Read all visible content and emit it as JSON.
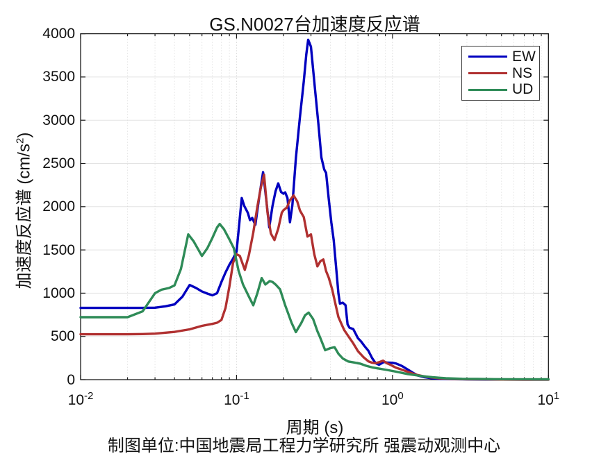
{
  "chart_data": {
    "type": "line",
    "title": "GS.N0027台加速度反应谱",
    "xlabel": "周期 (s)",
    "ylabel": "加速度反应谱 (cm/s2)",
    "ylabel_parts": {
      "pre": "加速度反应谱 (cm/s",
      "sup": "2",
      "post": ")"
    },
    "caption": "制图单位:中国地震局工程力学研究所 强震动观测中心",
    "x_scale": "log",
    "xlim": [
      0.01,
      10
    ],
    "ylim": [
      0,
      4000
    ],
    "grid": true,
    "legend_position": "top-right",
    "x_ticks": [
      {
        "value": 0.01,
        "base": "10",
        "exp": "-2"
      },
      {
        "value": 0.1,
        "base": "10",
        "exp": "-1"
      },
      {
        "value": 1,
        "base": "10",
        "exp": "0"
      },
      {
        "value": 10,
        "base": "10",
        "exp": "1"
      }
    ],
    "y_ticks": [
      0,
      500,
      1000,
      1500,
      2000,
      2500,
      3000,
      3500,
      4000
    ],
    "series": [
      {
        "name": "EW",
        "color": "#0000bf",
        "points": [
          [
            0.01,
            830
          ],
          [
            0.02,
            830
          ],
          [
            0.025,
            830
          ],
          [
            0.03,
            832
          ],
          [
            0.035,
            848
          ],
          [
            0.04,
            870
          ],
          [
            0.045,
            960
          ],
          [
            0.05,
            1095
          ],
          [
            0.055,
            1060
          ],
          [
            0.06,
            1020
          ],
          [
            0.065,
            995
          ],
          [
            0.07,
            975
          ],
          [
            0.075,
            1000
          ],
          [
            0.08,
            1130
          ],
          [
            0.085,
            1240
          ],
          [
            0.09,
            1330
          ],
          [
            0.095,
            1400
          ],
          [
            0.1,
            1480
          ],
          [
            0.104,
            1800
          ],
          [
            0.108,
            2100
          ],
          [
            0.112,
            2010
          ],
          [
            0.118,
            1930
          ],
          [
            0.122,
            1845
          ],
          [
            0.126,
            1870
          ],
          [
            0.132,
            1790
          ],
          [
            0.14,
            2120
          ],
          [
            0.148,
            2400
          ],
          [
            0.155,
            2080
          ],
          [
            0.162,
            1760
          ],
          [
            0.17,
            2010
          ],
          [
            0.178,
            2180
          ],
          [
            0.185,
            2270
          ],
          [
            0.193,
            2170
          ],
          [
            0.2,
            2150
          ],
          [
            0.205,
            2165
          ],
          [
            0.212,
            2100
          ],
          [
            0.22,
            1820
          ],
          [
            0.228,
            2020
          ],
          [
            0.24,
            2560
          ],
          [
            0.255,
            3040
          ],
          [
            0.27,
            3450
          ],
          [
            0.28,
            3760
          ],
          [
            0.288,
            3930
          ],
          [
            0.3,
            3850
          ],
          [
            0.32,
            3320
          ],
          [
            0.335,
            2950
          ],
          [
            0.35,
            2570
          ],
          [
            0.365,
            2430
          ],
          [
            0.375,
            2390
          ],
          [
            0.39,
            2090
          ],
          [
            0.405,
            1820
          ],
          [
            0.42,
            1610
          ],
          [
            0.435,
            1300
          ],
          [
            0.45,
            1000
          ],
          [
            0.46,
            880
          ],
          [
            0.48,
            890
          ],
          [
            0.5,
            860
          ],
          [
            0.515,
            640
          ],
          [
            0.53,
            600
          ],
          [
            0.56,
            585
          ],
          [
            0.6,
            480
          ],
          [
            0.63,
            440
          ],
          [
            0.66,
            390
          ],
          [
            0.7,
            335
          ],
          [
            0.74,
            250
          ],
          [
            0.78,
            190
          ],
          [
            0.82,
            172
          ],
          [
            0.88,
            205
          ],
          [
            0.93,
            197
          ],
          [
            1.0,
            195
          ],
          [
            1.06,
            185
          ],
          [
            1.15,
            158
          ],
          [
            1.25,
            118
          ],
          [
            1.35,
            80
          ],
          [
            1.45,
            48
          ],
          [
            1.6,
            28
          ],
          [
            1.8,
            15
          ],
          [
            2.0,
            10
          ],
          [
            2.5,
            6
          ],
          [
            3.0,
            4
          ],
          [
            4.0,
            2
          ],
          [
            5.0,
            2
          ],
          [
            7.0,
            1
          ],
          [
            10,
            1
          ]
        ]
      },
      {
        "name": "NS",
        "color": "#b03030",
        "points": [
          [
            0.01,
            525
          ],
          [
            0.02,
            525
          ],
          [
            0.025,
            527
          ],
          [
            0.03,
            532
          ],
          [
            0.04,
            552
          ],
          [
            0.05,
            582
          ],
          [
            0.06,
            622
          ],
          [
            0.07,
            645
          ],
          [
            0.075,
            658
          ],
          [
            0.08,
            690
          ],
          [
            0.085,
            830
          ],
          [
            0.09,
            1080
          ],
          [
            0.095,
            1350
          ],
          [
            0.1,
            1450
          ],
          [
            0.105,
            1430
          ],
          [
            0.113,
            1270
          ],
          [
            0.12,
            1440
          ],
          [
            0.128,
            1700
          ],
          [
            0.136,
            2000
          ],
          [
            0.143,
            2220
          ],
          [
            0.15,
            2370
          ],
          [
            0.158,
            1930
          ],
          [
            0.166,
            1690
          ],
          [
            0.175,
            1615
          ],
          [
            0.185,
            1745
          ],
          [
            0.195,
            1930
          ],
          [
            0.2,
            1960
          ],
          [
            0.21,
            1990
          ],
          [
            0.22,
            2075
          ],
          [
            0.232,
            2130
          ],
          [
            0.245,
            2060
          ],
          [
            0.255,
            1955
          ],
          [
            0.27,
            1880
          ],
          [
            0.285,
            1655
          ],
          [
            0.3,
            1680
          ],
          [
            0.315,
            1450
          ],
          [
            0.33,
            1310
          ],
          [
            0.345,
            1370
          ],
          [
            0.36,
            1390
          ],
          [
            0.375,
            1255
          ],
          [
            0.39,
            1180
          ],
          [
            0.41,
            1045
          ],
          [
            0.43,
            880
          ],
          [
            0.45,
            725
          ],
          [
            0.47,
            645
          ],
          [
            0.49,
            575
          ],
          [
            0.52,
            505
          ],
          [
            0.56,
            420
          ],
          [
            0.6,
            330
          ],
          [
            0.65,
            262
          ],
          [
            0.7,
            212
          ],
          [
            0.74,
            196
          ],
          [
            0.78,
            190
          ],
          [
            0.83,
            205
          ],
          [
            0.87,
            220
          ],
          [
            0.92,
            190
          ],
          [
            0.97,
            172
          ],
          [
            1.05,
            140
          ],
          [
            1.15,
            115
          ],
          [
            1.28,
            85
          ],
          [
            1.4,
            60
          ],
          [
            1.55,
            42
          ],
          [
            1.7,
            30
          ],
          [
            2.0,
            15
          ],
          [
            2.5,
            8
          ],
          [
            3.0,
            5
          ],
          [
            4.0,
            3
          ],
          [
            5.0,
            2
          ],
          [
            7.0,
            1
          ],
          [
            10,
            1
          ]
        ]
      },
      {
        "name": "UD",
        "color": "#2e8b57",
        "points": [
          [
            0.01,
            722
          ],
          [
            0.02,
            722
          ],
          [
            0.025,
            790
          ],
          [
            0.03,
            1000
          ],
          [
            0.033,
            1040
          ],
          [
            0.037,
            1060
          ],
          [
            0.04,
            1090
          ],
          [
            0.044,
            1280
          ],
          [
            0.049,
            1680
          ],
          [
            0.053,
            1600
          ],
          [
            0.06,
            1430
          ],
          [
            0.065,
            1520
          ],
          [
            0.07,
            1640
          ],
          [
            0.075,
            1760
          ],
          [
            0.078,
            1800
          ],
          [
            0.083,
            1740
          ],
          [
            0.09,
            1620
          ],
          [
            0.096,
            1520
          ],
          [
            0.103,
            1260
          ],
          [
            0.11,
            1100
          ],
          [
            0.12,
            960
          ],
          [
            0.128,
            860
          ],
          [
            0.136,
            1000
          ],
          [
            0.145,
            1175
          ],
          [
            0.153,
            1100
          ],
          [
            0.163,
            1140
          ],
          [
            0.17,
            1130
          ],
          [
            0.178,
            1100
          ],
          [
            0.19,
            1045
          ],
          [
            0.205,
            860
          ],
          [
            0.215,
            760
          ],
          [
            0.225,
            660
          ],
          [
            0.24,
            550
          ],
          [
            0.26,
            655
          ],
          [
            0.275,
            745
          ],
          [
            0.29,
            775
          ],
          [
            0.31,
            700
          ],
          [
            0.33,
            560
          ],
          [
            0.345,
            480
          ],
          [
            0.37,
            340
          ],
          [
            0.4,
            365
          ],
          [
            0.425,
            375
          ],
          [
            0.45,
            300
          ],
          [
            0.48,
            245
          ],
          [
            0.52,
            210
          ],
          [
            0.56,
            200
          ],
          [
            0.62,
            185
          ],
          [
            0.68,
            160
          ],
          [
            0.75,
            140
          ],
          [
            0.82,
            128
          ],
          [
            0.92,
            112
          ],
          [
            1.0,
            100
          ],
          [
            1.1,
            86
          ],
          [
            1.25,
            65
          ],
          [
            1.4,
            52
          ],
          [
            1.6,
            38
          ],
          [
            1.8,
            28
          ],
          [
            2.2,
            16
          ],
          [
            2.8,
            10
          ],
          [
            3.5,
            8
          ],
          [
            4.5,
            6
          ],
          [
            6.0,
            5
          ],
          [
            8.0,
            4
          ],
          [
            10,
            4
          ]
        ]
      }
    ]
  }
}
